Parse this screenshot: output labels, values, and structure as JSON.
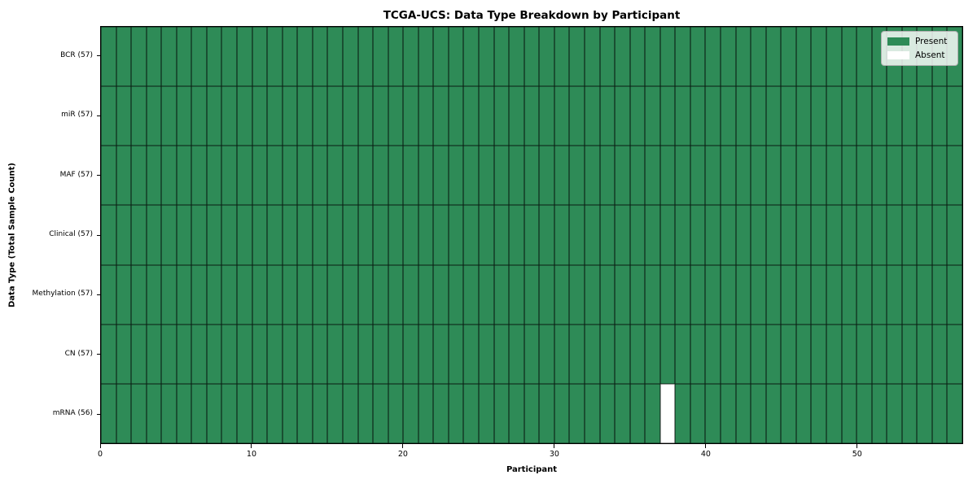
{
  "chart_data": {
    "type": "heatmap",
    "title": "TCGA-UCS: Data Type Breakdown by Participant",
    "xlabel": "Participant",
    "ylabel": "Data Type (Total Sample Count)",
    "n_participants": 57,
    "x_range": [
      0,
      57
    ],
    "x_ticks": [
      0,
      10,
      20,
      30,
      40,
      50
    ],
    "rows": [
      {
        "label": "BCR (57)",
        "data_type": "BCR",
        "total": 57,
        "absent_participants": []
      },
      {
        "label": "miR (57)",
        "data_type": "miR",
        "total": 57,
        "absent_participants": []
      },
      {
        "label": "MAF (57)",
        "data_type": "MAF",
        "total": 57,
        "absent_participants": []
      },
      {
        "label": "Clinical (57)",
        "data_type": "Clinical",
        "total": 57,
        "absent_participants": []
      },
      {
        "label": "Methylation (57)",
        "data_type": "Methylation",
        "total": 57,
        "absent_participants": []
      },
      {
        "label": "CN (57)",
        "data_type": "CN",
        "total": 57,
        "absent_participants": []
      },
      {
        "label": "mRNA (56)",
        "data_type": "mRNA",
        "total": 56,
        "absent_participants": [
          37
        ]
      }
    ],
    "colors": {
      "present": "#2e8b57",
      "absent": "#ffffff",
      "grid": "#1a1a1a",
      "spine": "#000000"
    },
    "legend": [
      {
        "label": "Present",
        "color": "#2e8b57"
      },
      {
        "label": "Absent",
        "color": "#ffffff"
      }
    ],
    "legend_position": "upper right",
    "grid": true
  }
}
